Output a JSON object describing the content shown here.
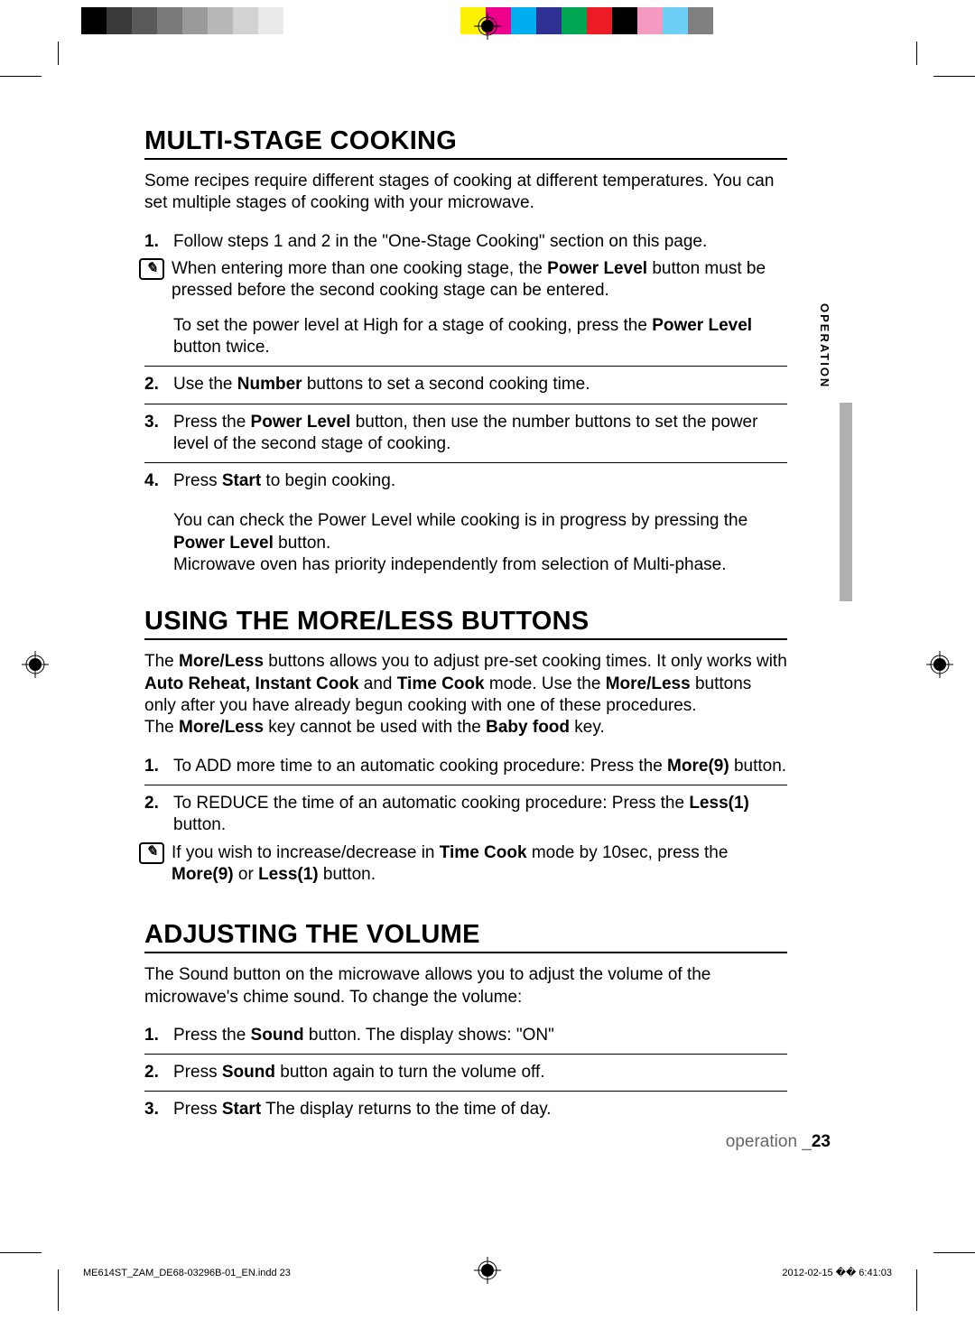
{
  "color_bar": [
    "#000000",
    "#3a3a3a",
    "#5a5a5a",
    "#7a7a7a",
    "#9a9a9a",
    "#b8b8b8",
    "#d2d2d2",
    "#eaeaea",
    "#ffffff",
    "#ffffff",
    "#ffffff",
    "#ffffff",
    "#ffffff",
    "#ffffff",
    "#ffffff",
    "#fff200",
    "#ec008c",
    "#00aeef",
    "#2e3192",
    "#00a651",
    "#ed1c24",
    "#000000",
    "#f49ac1",
    "#6dcff6",
    "#808080"
  ],
  "sidebar_label": "OPERATION",
  "h1_1": "MULTI-STAGE COOKING",
  "p1": "Some recipes require different stages of cooking at different temperatures. You can set multiple stages of cooking with your microwave.",
  "s1_steps": [
    {
      "n": "1.",
      "body": "Follow steps 1 and 2 in the \"One-Stage Cooking\" section on this page.",
      "note_a": [
        "When entering more than one cooking stage, the ",
        "Power Level",
        " button must be pressed before the second cooking stage can be entered."
      ],
      "note_b": [
        "To set the power level at High for a stage of cooking, press the ",
        "Power Level",
        " button twice."
      ]
    },
    {
      "n": "2.",
      "body_parts": [
        "Use the ",
        "Number",
        " buttons to set a second cooking time."
      ]
    },
    {
      "n": "3.",
      "body_parts": [
        "Press the ",
        "Power Level",
        " button, then use the number buttons to set the power level of the second stage of cooking."
      ]
    },
    {
      "n": "4.",
      "body_parts": [
        "Press ",
        "Start",
        " to begin cooking."
      ],
      "tail_a": [
        "You can check the Power Level while cooking is in progress by pressing the ",
        "Power Level",
        " button."
      ],
      "tail_b": "Microwave oven has priority independently from selection of Multi-phase."
    }
  ],
  "h1_2": "USING THE MORE/LESS BUTTONS",
  "p2_a": [
    "The ",
    "More/Less",
    " buttons allows you to adjust pre-set cooking times. It only works with ",
    "Auto Reheat, Instant Cook",
    " and ",
    "Time Cook",
    " mode. Use the ",
    "More/Less",
    " buttons only after you have already begun cooking with one of these procedures."
  ],
  "p2_b": [
    "The ",
    "More/Less",
    " key cannot be used with the ",
    "Baby food",
    " key."
  ],
  "s2_steps": [
    {
      "n": "1.",
      "body_parts": [
        "To ADD more time to an automatic cooking procedure: Press the ",
        "More(9)",
        " button."
      ]
    },
    {
      "n": "2.",
      "body_parts": [
        "To REDUCE the time of an automatic cooking procedure: Press the ",
        "Less(1)",
        " button."
      ],
      "note": [
        "If you wish to increase/decrease in ",
        "Time Cook",
        " mode by 10sec, press the ",
        "More(9)",
        " or ",
        "Less(1)",
        " button."
      ]
    }
  ],
  "h1_3": "ADJUSTING THE VOLUME",
  "p3": "The Sound button on the microwave allows you to adjust the volume of the microwave's chime sound. To change the volume:",
  "s3_steps": [
    {
      "n": "1.",
      "body_parts": [
        "Press the ",
        "Sound",
        " button. The display shows: \"ON\""
      ]
    },
    {
      "n": "2.",
      "body_parts": [
        "Press ",
        "Sound",
        " button again to turn the volume off."
      ]
    },
    {
      "n": "3.",
      "body_parts": [
        "Press ",
        "Start",
        " The display returns to the time of day."
      ]
    }
  ],
  "footer_section": "operation _",
  "footer_page": "23",
  "print_left": "ME614ST_ZAM_DE68-03296B-01_EN.indd   23",
  "print_right": "2012-02-15   �� 6:41:03"
}
